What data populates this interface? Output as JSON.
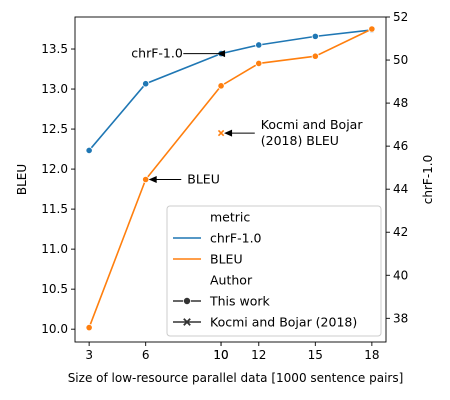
{
  "chart_data": {
    "type": "line",
    "xlabel": "Size of low-resource parallel data [1000 sentence pairs]",
    "ylabel_left": "BLEU",
    "ylabel_right": "chrF-1.0",
    "x_ticks": [
      "3",
      "6",
      "10",
      "10",
      "12",
      "15",
      "18"
    ],
    "x_tick_values": [
      3,
      6,
      10,
      10,
      12,
      15,
      18
    ],
    "xlim": [
      2.25,
      18.75
    ],
    "ylim_left": [
      9.84,
      13.9
    ],
    "yticks_left": [
      "10.0",
      "10.5",
      "11.0",
      "11.5",
      "12.0",
      "12.5",
      "13.0",
      "13.5"
    ],
    "ylim_right": [
      36.9,
      52.0
    ],
    "yticks_right": [
      "38",
      "40",
      "42",
      "44",
      "46",
      "48",
      "50",
      "52"
    ],
    "series": [
      {
        "name": "chrF-1.0",
        "axis": "right",
        "color": "#1f77b4",
        "marker": "circle",
        "author": "This work",
        "x": [
          3,
          6,
          10,
          12,
          15,
          18
        ],
        "y": [
          45.8,
          48.9,
          50.3,
          50.7,
          51.1,
          51.4
        ]
      },
      {
        "name": "BLEU",
        "axis": "left",
        "color": "#ff7f0e",
        "marker": "circle",
        "author": "This work",
        "x": [
          3,
          6,
          10,
          12,
          15,
          18
        ],
        "y": [
          10.02,
          11.87,
          13.04,
          13.32,
          13.41,
          13.75
        ]
      }
    ],
    "reference_points": [
      {
        "name": "BLEU",
        "author": "Kocmi and Bojar (2018)",
        "marker": "x",
        "color": "#ff7f0e",
        "axis": "left",
        "x": 10,
        "y": 12.45
      }
    ],
    "annotations": [
      {
        "text": "chrF-1.0",
        "target_series": "chrF-1.0",
        "target_x": 10,
        "text_x": 4.6,
        "text_y": 13.45
      },
      {
        "text": "BLEU",
        "target_series": "BLEU",
        "target_x": 6,
        "text_x": 8.1,
        "text_y": 11.87
      },
      {
        "text": "Kocmi and Bojar\n(2018) BLEU",
        "target_series": "reference",
        "target_x": 10,
        "text_x": 12.0,
        "text_y": 12.45
      }
    ],
    "legend": {
      "position": "lower-right",
      "entries": [
        {
          "label": "metric",
          "kind": "header"
        },
        {
          "label": "chrF-1.0",
          "kind": "line",
          "color": "#1f77b4"
        },
        {
          "label": "BLEU",
          "kind": "line",
          "color": "#ff7f0e"
        },
        {
          "label": "Author",
          "kind": "header"
        },
        {
          "label": "This work",
          "kind": "marker-circle",
          "color": "#333333"
        },
        {
          "label": "Kocmi and Bojar (2018)",
          "kind": "marker-x",
          "color": "#333333"
        }
      ]
    }
  }
}
